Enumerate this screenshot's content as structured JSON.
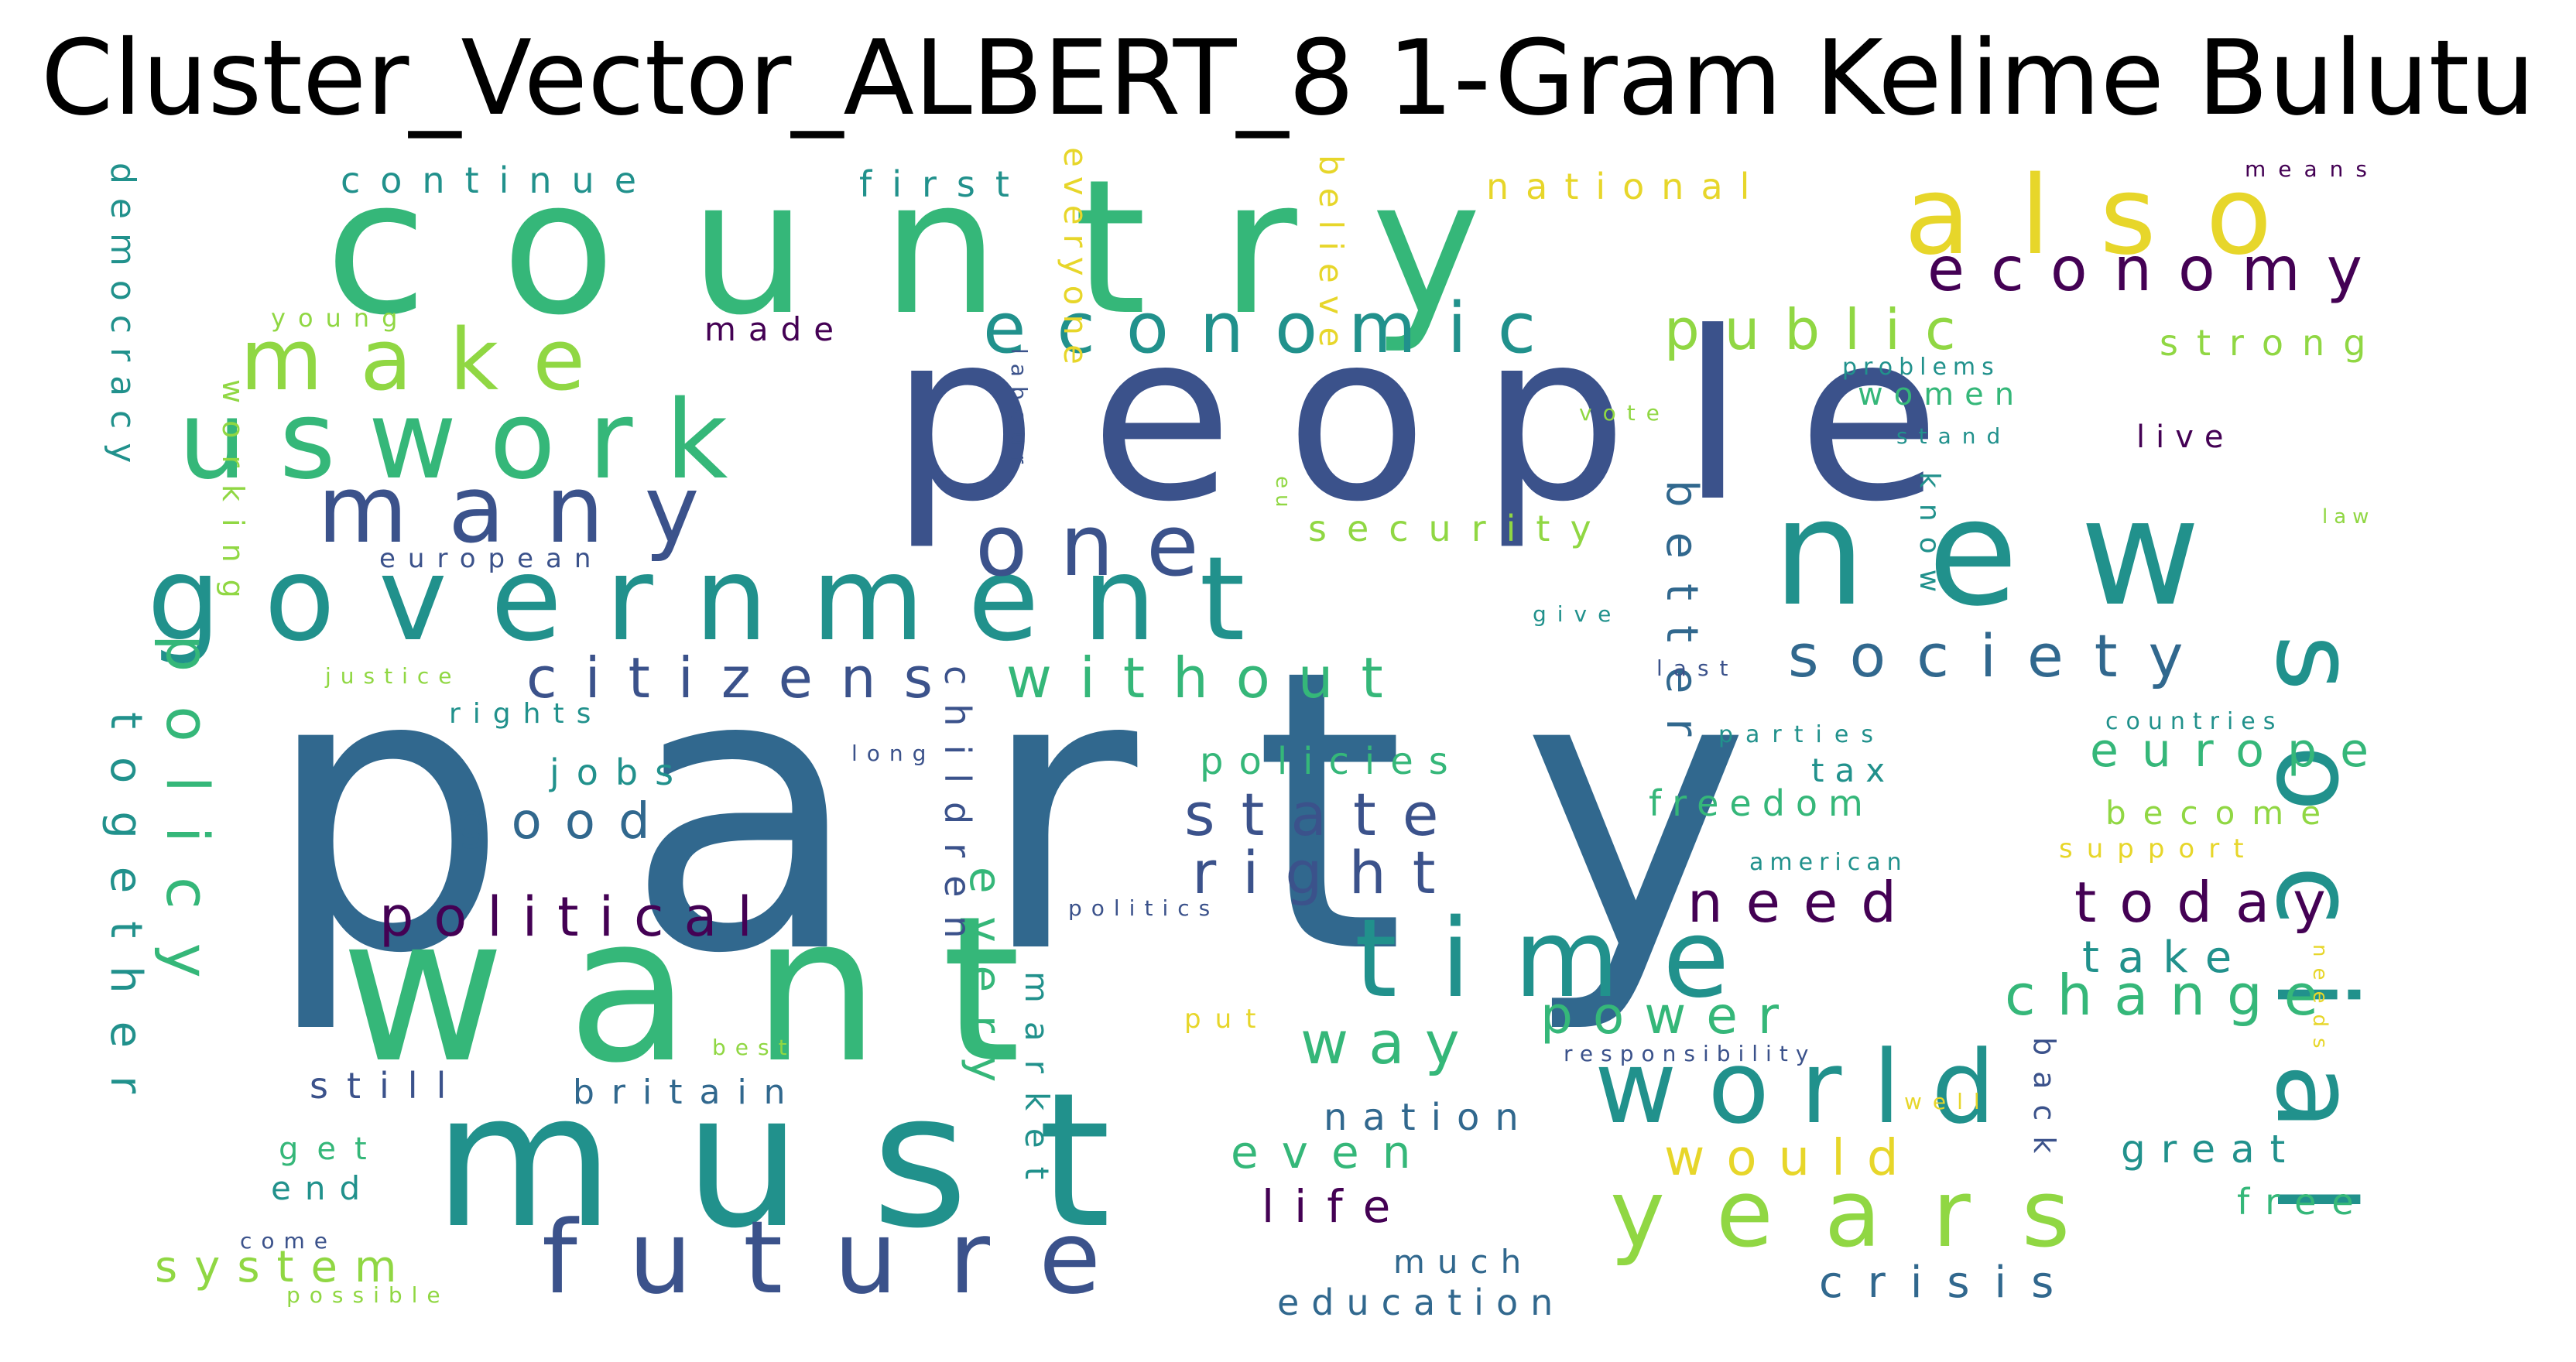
{
  "title": "Cluster_Vector_ALBERT_8 1-Gram Kelime Bulutu",
  "colors": {
    "purple": "#440154",
    "indigo": "#3b528b",
    "blue": "#31688e",
    "teal": "#21918c",
    "green": "#35b779",
    "lime": "#90d743",
    "yellow": "#e7d62a"
  },
  "words": [
    {
      "text": "party",
      "color": "blue"
    },
    {
      "text": "people",
      "color": "indigo"
    },
    {
      "text": "country",
      "color": "green"
    },
    {
      "text": "want",
      "color": "green"
    },
    {
      "text": "must",
      "color": "teal"
    },
    {
      "text": "new",
      "color": "teal"
    },
    {
      "text": "government",
      "color": "teal"
    },
    {
      "text": "also",
      "color": "yellow"
    },
    {
      "text": "uswork",
      "color": "green"
    },
    {
      "text": "make",
      "color": "lime"
    },
    {
      "text": "many",
      "color": "indigo"
    },
    {
      "text": "one",
      "color": "indigo"
    },
    {
      "text": "time",
      "color": "teal"
    },
    {
      "text": "future",
      "color": "indigo"
    },
    {
      "text": "world",
      "color": "teal"
    },
    {
      "text": "years",
      "color": "lime"
    },
    {
      "text": "social",
      "color": "teal"
    },
    {
      "text": "economic",
      "color": "teal"
    },
    {
      "text": "economy",
      "color": "purple"
    },
    {
      "text": "public",
      "color": "lime"
    },
    {
      "text": "society",
      "color": "blue"
    },
    {
      "text": "citizens",
      "color": "indigo"
    },
    {
      "text": "without",
      "color": "green"
    },
    {
      "text": "state",
      "color": "indigo"
    },
    {
      "text": "right",
      "color": "indigo"
    },
    {
      "text": "political",
      "color": "purple"
    },
    {
      "text": "good",
      "color": "blue"
    },
    {
      "text": "need",
      "color": "purple"
    },
    {
      "text": "today",
      "color": "purple"
    },
    {
      "text": "change",
      "color": "green"
    },
    {
      "text": "europe",
      "color": "green"
    },
    {
      "text": "way",
      "color": "green"
    },
    {
      "text": "power",
      "color": "green"
    },
    {
      "text": "policy",
      "color": "green"
    },
    {
      "text": "together",
      "color": "teal"
    },
    {
      "text": "system",
      "color": "lime"
    },
    {
      "text": "security",
      "color": "lime"
    },
    {
      "text": "continue",
      "color": "teal"
    },
    {
      "text": "first",
      "color": "teal"
    },
    {
      "text": "national",
      "color": "yellow"
    },
    {
      "text": "means",
      "color": "purple"
    },
    {
      "text": "strong",
      "color": "lime"
    },
    {
      "text": "women",
      "color": "green"
    },
    {
      "text": "live",
      "color": "purple"
    },
    {
      "text": "better",
      "color": "blue"
    },
    {
      "text": "know",
      "color": "teal"
    },
    {
      "text": "freedom",
      "color": "green"
    },
    {
      "text": "tax",
      "color": "teal"
    },
    {
      "text": "become",
      "color": "lime"
    },
    {
      "text": "support",
      "color": "yellow"
    },
    {
      "text": "take",
      "color": "teal"
    },
    {
      "text": "policies",
      "color": "green"
    },
    {
      "text": "jobs",
      "color": "teal"
    },
    {
      "text": "rights",
      "color": "teal"
    },
    {
      "text": "justice",
      "color": "lime"
    },
    {
      "text": "european",
      "color": "indigo"
    },
    {
      "text": "young",
      "color": "lime"
    },
    {
      "text": "made",
      "color": "purple"
    },
    {
      "text": "democracy",
      "color": "teal"
    },
    {
      "text": "working",
      "color": "lime"
    },
    {
      "text": "labour",
      "color": "indigo"
    },
    {
      "text": "everyone",
      "color": "yellow"
    },
    {
      "text": "believe",
      "color": "yellow"
    },
    {
      "text": "eu",
      "color": "lime"
    },
    {
      "text": "vote",
      "color": "lime"
    },
    {
      "text": "problems",
      "color": "teal"
    },
    {
      "text": "stand",
      "color": "teal"
    },
    {
      "text": "law",
      "color": "lime"
    },
    {
      "text": "give",
      "color": "teal"
    },
    {
      "text": "last",
      "color": "indigo"
    },
    {
      "text": "parties",
      "color": "teal"
    },
    {
      "text": "countries",
      "color": "teal"
    },
    {
      "text": "american",
      "color": "teal"
    },
    {
      "text": "long",
      "color": "indigo"
    },
    {
      "text": "children",
      "color": "indigo"
    },
    {
      "text": "politics",
      "color": "indigo"
    },
    {
      "text": "every",
      "color": "green"
    },
    {
      "text": "market",
      "color": "teal"
    },
    {
      "text": "still",
      "color": "indigo"
    },
    {
      "text": "britain",
      "color": "blue"
    },
    {
      "text": "best",
      "color": "lime"
    },
    {
      "text": "put",
      "color": "yellow"
    },
    {
      "text": "responsibility",
      "color": "indigo"
    },
    {
      "text": "nation",
      "color": "blue"
    },
    {
      "text": "even",
      "color": "green"
    },
    {
      "text": "would",
      "color": "yellow"
    },
    {
      "text": "life",
      "color": "purple"
    },
    {
      "text": "much",
      "color": "blue"
    },
    {
      "text": "education",
      "color": "blue"
    },
    {
      "text": "crisis",
      "color": "blue"
    },
    {
      "text": "well",
      "color": "yellow"
    },
    {
      "text": "back",
      "color": "indigo"
    },
    {
      "text": "great",
      "color": "teal"
    },
    {
      "text": "free",
      "color": "green"
    },
    {
      "text": "needs",
      "color": "yellow"
    },
    {
      "text": "get",
      "color": "green"
    },
    {
      "text": "end",
      "color": "teal"
    },
    {
      "text": "come",
      "color": "indigo"
    },
    {
      "text": "possible",
      "color": "lime"
    }
  ]
}
